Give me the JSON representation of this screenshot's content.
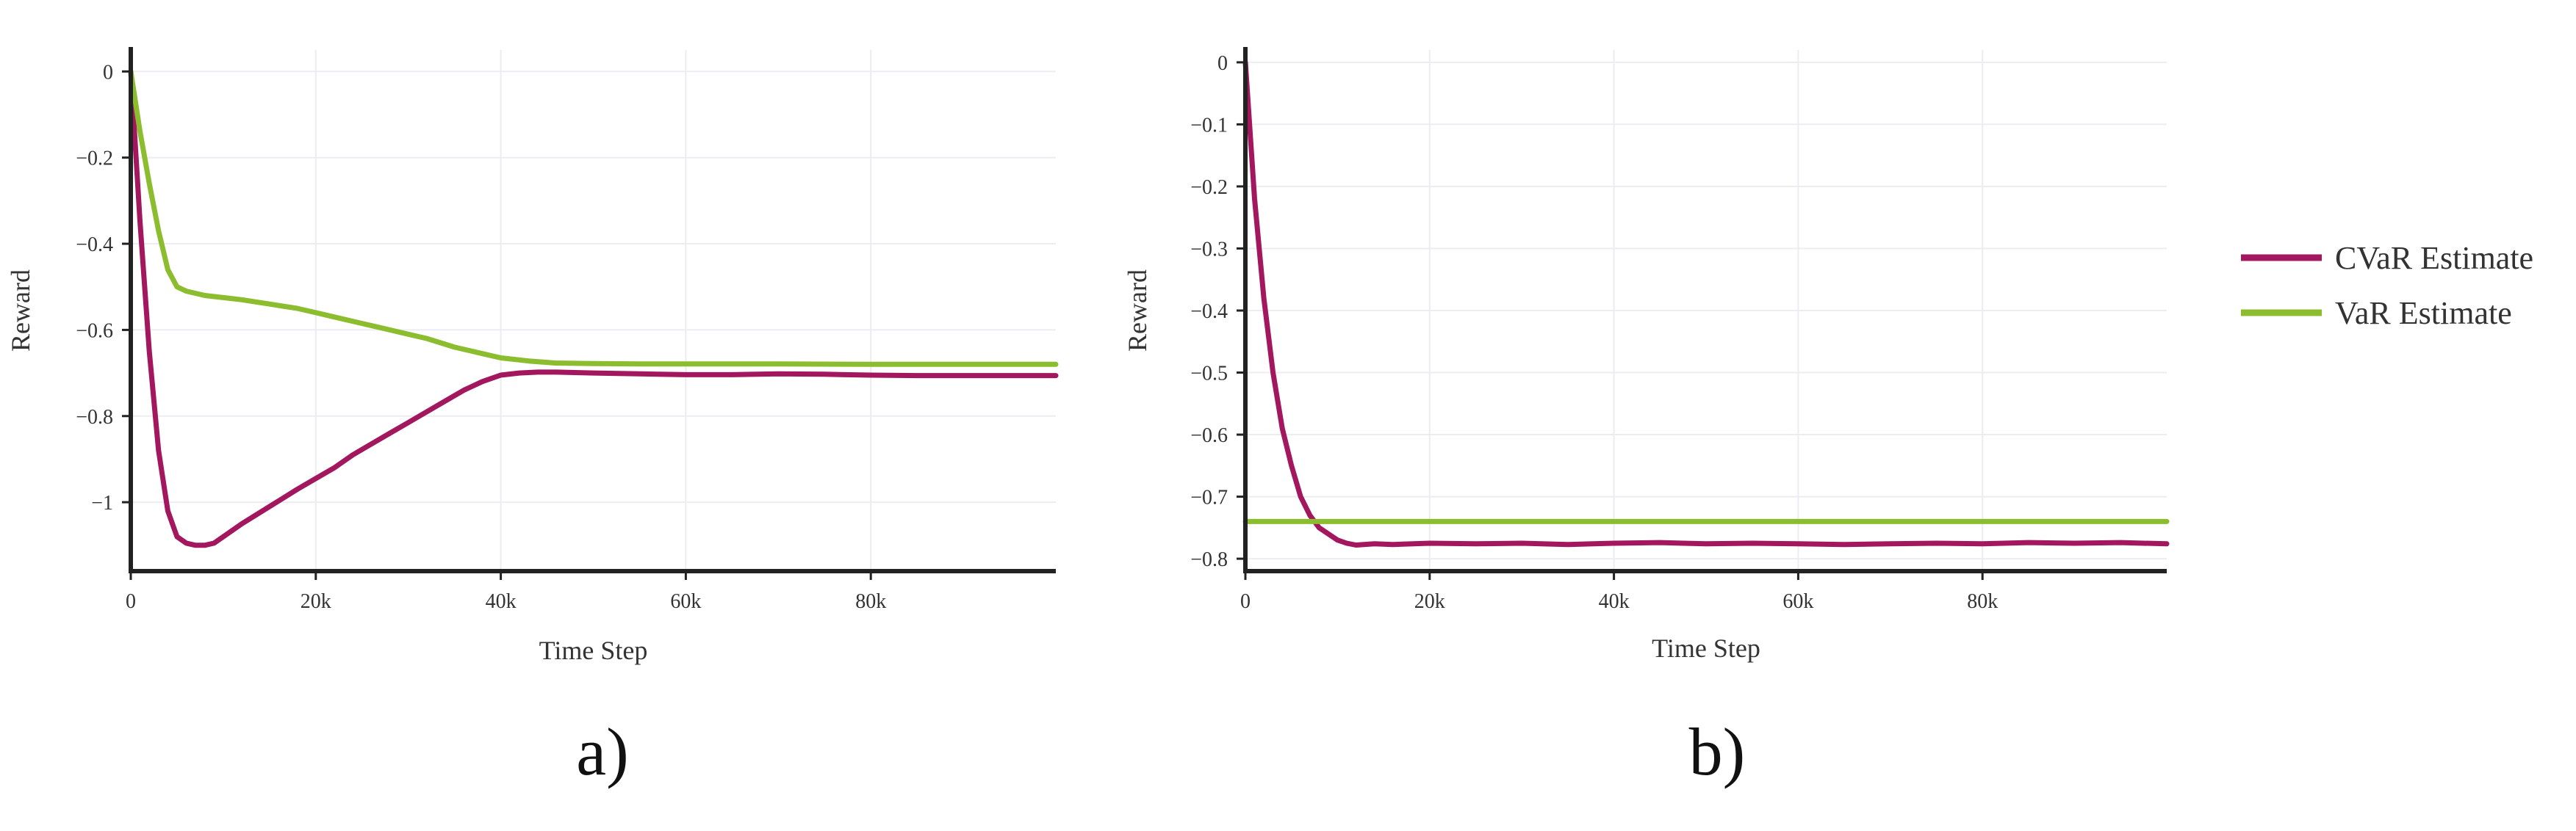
{
  "colors": {
    "cvar": "#a3175f",
    "var": "#8cbd2f",
    "grid": "#ececf2",
    "axis": "#222222"
  },
  "legend": [
    {
      "name": "CVaR Estimate",
      "color": "#a3175f"
    },
    {
      "name": "VaR Estimate",
      "color": "#8cbd2f"
    }
  ],
  "captions": [
    "a)",
    "b)"
  ],
  "chart_data": [
    {
      "type": "line",
      "caption": "a)",
      "xlabel": "Time Step",
      "ylabel": "Reward",
      "xlim": [
        0,
        100000
      ],
      "ylim": [
        -1.16,
        0.05
      ],
      "xticks": [
        0,
        20000,
        40000,
        60000,
        80000
      ],
      "xtick_labels": [
        "0",
        "20k",
        "40k",
        "60k",
        "80k"
      ],
      "yticks": [
        0,
        -0.2,
        -0.4,
        -0.6,
        -0.8,
        -1
      ],
      "ytick_labels": [
        "0",
        "−0.2",
        "−0.4",
        "−0.6",
        "−0.8",
        "−1"
      ],
      "grid": true,
      "series": [
        {
          "name": "CVaR Estimate",
          "x": [
            0,
            1000,
            2000,
            3000,
            4000,
            5000,
            6000,
            7000,
            8000,
            9000,
            10000,
            12000,
            15000,
            18000,
            20000,
            22000,
            24000,
            26000,
            28000,
            30000,
            32000,
            34000,
            36000,
            38000,
            40000,
            42000,
            44000,
            46000,
            50000,
            55000,
            60000,
            65000,
            70000,
            75000,
            80000,
            85000,
            90000,
            95000,
            100000
          ],
          "y": [
            0,
            -0.35,
            -0.65,
            -0.88,
            -1.02,
            -1.08,
            -1.095,
            -1.1,
            -1.1,
            -1.095,
            -1.08,
            -1.05,
            -1.01,
            -0.97,
            -0.945,
            -0.92,
            -0.89,
            -0.865,
            -0.84,
            -0.815,
            -0.79,
            -0.765,
            -0.74,
            -0.72,
            -0.705,
            -0.7,
            -0.698,
            -0.698,
            -0.7,
            -0.702,
            -0.704,
            -0.704,
            -0.702,
            -0.703,
            -0.705,
            -0.706,
            -0.706,
            -0.706,
            -0.706
          ]
        },
        {
          "name": "VaR Estimate",
          "x": [
            0,
            1000,
            2000,
            3000,
            4000,
            5000,
            6000,
            8000,
            10000,
            12000,
            15000,
            18000,
            20000,
            22000,
            25000,
            28000,
            30000,
            32000,
            35000,
            38000,
            40000,
            43000,
            46000,
            50000,
            55000,
            60000,
            70000,
            80000,
            90000,
            100000
          ],
          "y": [
            0,
            -0.14,
            -0.26,
            -0.37,
            -0.46,
            -0.5,
            -0.51,
            -0.52,
            -0.525,
            -0.53,
            -0.54,
            -0.55,
            -0.56,
            -0.57,
            -0.585,
            -0.6,
            -0.61,
            -0.62,
            -0.64,
            -0.655,
            -0.665,
            -0.672,
            -0.677,
            -0.678,
            -0.679,
            -0.679,
            -0.679,
            -0.68,
            -0.68,
            -0.68
          ]
        }
      ]
    },
    {
      "type": "line",
      "caption": "b)",
      "xlabel": "Time Step",
      "ylabel": "Reward",
      "xlim": [
        0,
        100000
      ],
      "ylim": [
        -0.82,
        0.02
      ],
      "xticks": [
        0,
        20000,
        40000,
        60000,
        80000
      ],
      "xtick_labels": [
        "0",
        "20k",
        "40k",
        "60k",
        "80k"
      ],
      "yticks": [
        0,
        -0.1,
        -0.2,
        -0.3,
        -0.4,
        -0.5,
        -0.6,
        -0.7,
        -0.8
      ],
      "ytick_labels": [
        "0",
        "−0.1",
        "−0.2",
        "−0.3",
        "−0.4",
        "−0.5",
        "−0.6",
        "−0.7",
        "−0.8"
      ],
      "grid": true,
      "series": [
        {
          "name": "CVaR Estimate",
          "x": [
            0,
            1000,
            2000,
            3000,
            4000,
            5000,
            6000,
            7000,
            8000,
            9000,
            10000,
            11000,
            12000,
            14000,
            16000,
            20000,
            25000,
            30000,
            35000,
            40000,
            45000,
            50000,
            55000,
            60000,
            65000,
            70000,
            75000,
            80000,
            85000,
            90000,
            95000,
            100000
          ],
          "y": [
            0,
            -0.22,
            -0.38,
            -0.5,
            -0.59,
            -0.65,
            -0.7,
            -0.73,
            -0.75,
            -0.76,
            -0.77,
            -0.775,
            -0.778,
            -0.776,
            -0.777,
            -0.775,
            -0.776,
            -0.775,
            -0.777,
            -0.775,
            -0.774,
            -0.776,
            -0.775,
            -0.776,
            -0.777,
            -0.776,
            -0.775,
            -0.776,
            -0.774,
            -0.775,
            -0.774,
            -0.776
          ]
        },
        {
          "name": "VaR Estimate",
          "x": [
            0,
            100000
          ],
          "y": [
            -0.74,
            -0.74
          ]
        }
      ]
    }
  ]
}
